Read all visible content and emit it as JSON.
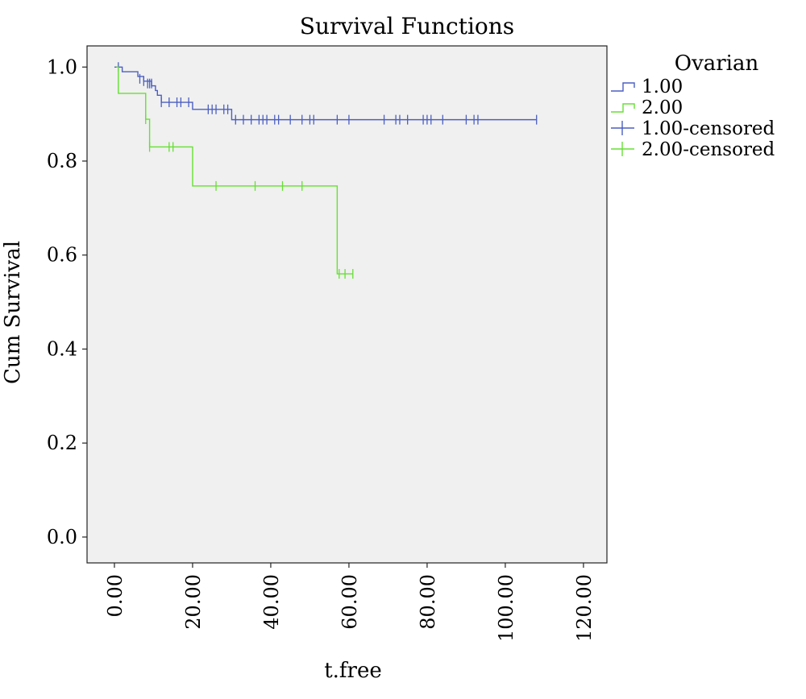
{
  "chart_data": {
    "type": "line",
    "title": "Survival Functions",
    "xlabel": "t.free",
    "ylabel": "Cum Survival",
    "xlim": [
      -7,
      126
    ],
    "ylim": [
      -0.055,
      1.045
    ],
    "xticks": [
      0,
      20,
      40,
      60,
      80,
      100,
      120
    ],
    "xtick_labels": [
      "0.00",
      "20.00",
      "40.00",
      "60.00",
      "80.00",
      "100.00",
      "120.00"
    ],
    "yticks": [
      0.0,
      0.2,
      0.4,
      0.6,
      0.8,
      1.0
    ],
    "ytick_labels": [
      "0.0",
      "0.2",
      "0.4",
      "0.6",
      "0.8",
      "1.0"
    ],
    "grid": false,
    "legend": {
      "title": "Ovarian",
      "placement": "right",
      "entries": [
        "1.00",
        "2.00",
        "1.00-censored",
        "2.00-censored"
      ]
    },
    "series": [
      {
        "name": "1.00",
        "color": "#4b5fc0",
        "steps": [
          [
            0,
            1.0
          ],
          [
            2,
            0.99
          ],
          [
            6,
            0.98
          ],
          [
            7.5,
            0.97
          ],
          [
            9.5,
            0.96
          ],
          [
            10.5,
            0.95
          ],
          [
            11,
            0.94
          ],
          [
            12,
            0.925
          ],
          [
            20,
            0.91
          ],
          [
            30,
            0.888
          ],
          [
            108,
            0.888
          ]
        ],
        "censored": [
          [
            1,
            1.0
          ],
          [
            6.5,
            0.975
          ],
          [
            7.5,
            0.97
          ],
          [
            8.5,
            0.965
          ],
          [
            9,
            0.965
          ],
          [
            9.5,
            0.965
          ],
          [
            12,
            0.925
          ],
          [
            14,
            0.925
          ],
          [
            16,
            0.925
          ],
          [
            17,
            0.925
          ],
          [
            19,
            0.925
          ],
          [
            24,
            0.91
          ],
          [
            25,
            0.91
          ],
          [
            26,
            0.91
          ],
          [
            28,
            0.91
          ],
          [
            29,
            0.91
          ],
          [
            31,
            0.888
          ],
          [
            33,
            0.888
          ],
          [
            35,
            0.888
          ],
          [
            37,
            0.888
          ],
          [
            38,
            0.888
          ],
          [
            39,
            0.888
          ],
          [
            41,
            0.888
          ],
          [
            42,
            0.888
          ],
          [
            45,
            0.888
          ],
          [
            48,
            0.888
          ],
          [
            50,
            0.888
          ],
          [
            51,
            0.888
          ],
          [
            57,
            0.888
          ],
          [
            60,
            0.888
          ],
          [
            69,
            0.888
          ],
          [
            72,
            0.888
          ],
          [
            73,
            0.888
          ],
          [
            75,
            0.888
          ],
          [
            79,
            0.888
          ],
          [
            80,
            0.888
          ],
          [
            81,
            0.888
          ],
          [
            84,
            0.888
          ],
          [
            90,
            0.888
          ],
          [
            92,
            0.888
          ],
          [
            93,
            0.888
          ],
          [
            108,
            0.888
          ]
        ]
      },
      {
        "name": "2.00",
        "color": "#66e033",
        "steps": [
          [
            0.5,
            1.0
          ],
          [
            1,
            0.944
          ],
          [
            8,
            0.889
          ],
          [
            9,
            0.83
          ],
          [
            20,
            0.747
          ],
          [
            57,
            0.56
          ],
          [
            61,
            0.56
          ]
        ],
        "censored": [
          [
            8,
            0.889
          ],
          [
            9,
            0.83
          ],
          [
            14,
            0.83
          ],
          [
            15,
            0.83
          ],
          [
            26,
            0.747
          ],
          [
            36,
            0.747
          ],
          [
            43,
            0.747
          ],
          [
            48,
            0.747
          ],
          [
            57.5,
            0.56
          ],
          [
            59,
            0.56
          ],
          [
            61,
            0.56
          ]
        ]
      }
    ]
  }
}
